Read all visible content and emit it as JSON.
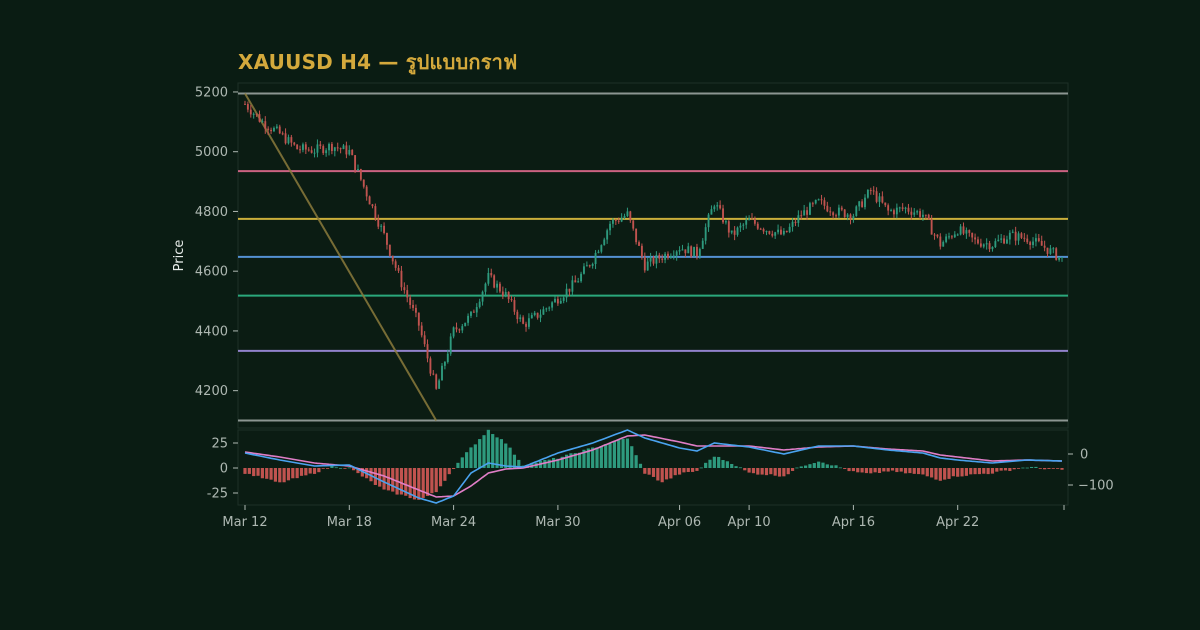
{
  "title": "XAUUSD H4 — รูปแบบกราฟ",
  "colors": {
    "background": "#0a1c13",
    "panel": "#0b1c13",
    "title": "#d4a93c",
    "up": "#2e9a7e",
    "down": "#c0534f",
    "macd": "#4aa3f0",
    "signal": "#e07ec7",
    "trend": "#8a7a3c"
  },
  "chart_data": [
    {
      "type": "candlestick",
      "ylabel": "Price",
      "ylim": [
        4075,
        5230
      ],
      "yticks": [
        4200,
        4400,
        4600,
        4800,
        5000,
        5200
      ],
      "xticks": [
        {
          "label": "Mar 12",
          "date": "2026-03-12"
        },
        {
          "label": "Mar 18",
          "date": "2026-03-18"
        },
        {
          "label": "Mar 24",
          "date": "2026-03-24"
        },
        {
          "label": "Mar 30",
          "date": "2026-03-30"
        },
        {
          "label": "Apr 06",
          "date": "2026-04-06"
        },
        {
          "label": "Apr 10",
          "date": "2026-04-10"
        },
        {
          "label": "Apr 16",
          "date": "2026-04-16"
        },
        {
          "label": "Apr 22",
          "date": "2026-04-22"
        }
      ],
      "xrange": [
        "2026-03-12",
        "2026-04-28"
      ],
      "close_path": [
        [
          "2026-03-12",
          5160
        ],
        [
          "2026-03-13",
          5100
        ],
        [
          "2026-03-14",
          5060
        ],
        [
          "2026-03-15",
          5010
        ],
        [
          "2026-03-16",
          5005
        ],
        [
          "2026-03-17",
          5020
        ],
        [
          "2026-03-18",
          5000
        ],
        [
          "2026-03-19",
          4860
        ],
        [
          "2026-03-20",
          4720
        ],
        [
          "2026-03-21",
          4560
        ],
        [
          "2026-03-22",
          4420
        ],
        [
          "2026-03-23",
          4200
        ],
        [
          "2026-03-24",
          4400
        ],
        [
          "2026-03-25",
          4450
        ],
        [
          "2026-03-26",
          4580
        ],
        [
          "2026-03-27",
          4520
        ],
        [
          "2026-03-28",
          4420
        ],
        [
          "2026-03-29",
          4460
        ],
        [
          "2026-03-30",
          4510
        ],
        [
          "2026-03-31",
          4560
        ],
        [
          "2026-04-01",
          4640
        ],
        [
          "2026-04-02",
          4760
        ],
        [
          "2026-04-03",
          4790
        ],
        [
          "2026-04-04",
          4620
        ],
        [
          "2026-04-05",
          4650
        ],
        [
          "2026-04-06",
          4680
        ],
        [
          "2026-04-07",
          4660
        ],
        [
          "2026-04-08",
          4830
        ],
        [
          "2026-04-09",
          4720
        ],
        [
          "2026-04-10",
          4770
        ],
        [
          "2026-04-11",
          4740
        ],
        [
          "2026-04-12",
          4720
        ],
        [
          "2026-04-13",
          4790
        ],
        [
          "2026-04-14",
          4830
        ],
        [
          "2026-04-15",
          4800
        ],
        [
          "2026-04-16",
          4790
        ],
        [
          "2026-04-17",
          4870
        ],
        [
          "2026-04-18",
          4800
        ],
        [
          "2026-04-19",
          4810
        ],
        [
          "2026-04-20",
          4790
        ],
        [
          "2026-04-21",
          4690
        ],
        [
          "2026-04-22",
          4740
        ],
        [
          "2026-04-23",
          4700
        ],
        [
          "2026-04-24",
          4690
        ],
        [
          "2026-04-25",
          4720
        ],
        [
          "2026-04-26",
          4710
        ],
        [
          "2026-04-27",
          4680
        ],
        [
          "2026-04-28",
          4640
        ]
      ],
      "levels": [
        {
          "value": 5195,
          "color": "#9aa4a0"
        },
        {
          "value": 4935,
          "color": "#e06a8e"
        },
        {
          "value": 4775,
          "color": "#e0c040"
        },
        {
          "value": 4648,
          "color": "#5c9ee8"
        },
        {
          "value": 4518,
          "color": "#2fb888"
        },
        {
          "value": 4333,
          "color": "#a08ee0"
        },
        {
          "value": 4100,
          "color": "#9aa4a0"
        }
      ],
      "trendline": [
        [
          "2026-03-12",
          5195
        ],
        [
          "2026-03-23",
          4100
        ]
      ]
    },
    {
      "type": "macd",
      "ylim": [
        -37,
        38
      ],
      "yticks_left": [
        25,
        0,
        -25
      ],
      "yticks_right": [
        0,
        -100
      ],
      "hist_path": [
        [
          "2026-03-12",
          -5
        ],
        [
          "2026-03-14",
          -15
        ],
        [
          "2026-03-16",
          -5
        ],
        [
          "2026-03-17",
          2
        ],
        [
          "2026-03-18",
          0
        ],
        [
          "2026-03-20",
          -22
        ],
        [
          "2026-03-22",
          -32
        ],
        [
          "2026-03-23",
          -24
        ],
        [
          "2026-03-24",
          0
        ],
        [
          "2026-03-25",
          20
        ],
        [
          "2026-03-26",
          38
        ],
        [
          "2026-03-27",
          25
        ],
        [
          "2026-03-28",
          3
        ],
        [
          "2026-03-30",
          10
        ],
        [
          "2026-04-02",
          25
        ],
        [
          "2026-04-03",
          30
        ],
        [
          "2026-04-04",
          -5
        ],
        [
          "2026-04-05",
          -14
        ],
        [
          "2026-04-06",
          -6
        ],
        [
          "2026-04-07",
          -3
        ],
        [
          "2026-04-08",
          12
        ],
        [
          "2026-04-09",
          5
        ],
        [
          "2026-04-10",
          -5
        ],
        [
          "2026-04-12",
          -8
        ],
        [
          "2026-04-13",
          2
        ],
        [
          "2026-04-14",
          7
        ],
        [
          "2026-04-15",
          2
        ],
        [
          "2026-04-16",
          -4
        ],
        [
          "2026-04-17",
          -6
        ],
        [
          "2026-04-18",
          -3
        ],
        [
          "2026-04-20",
          -7
        ],
        [
          "2026-04-21",
          -12
        ],
        [
          "2026-04-22",
          -8
        ],
        [
          "2026-04-24",
          -5
        ],
        [
          "2026-04-25",
          -2
        ],
        [
          "2026-04-26",
          1
        ],
        [
          "2026-04-28",
          -2
        ]
      ],
      "macd_path": [
        [
          "2026-03-12",
          15
        ],
        [
          "2026-03-14",
          8
        ],
        [
          "2026-03-16",
          2
        ],
        [
          "2026-03-18",
          3
        ],
        [
          "2026-03-20",
          -14
        ],
        [
          "2026-03-22",
          -30
        ],
        [
          "2026-03-23",
          -35
        ],
        [
          "2026-03-24",
          -28
        ],
        [
          "2026-03-25",
          -5
        ],
        [
          "2026-03-26",
          5
        ],
        [
          "2026-03-27",
          2
        ],
        [
          "2026-03-28",
          1
        ],
        [
          "2026-03-30",
          15
        ],
        [
          "2026-04-01",
          25
        ],
        [
          "2026-04-03",
          38
        ],
        [
          "2026-04-04",
          30
        ],
        [
          "2026-04-06",
          20
        ],
        [
          "2026-04-07",
          17
        ],
        [
          "2026-04-08",
          25
        ],
        [
          "2026-04-10",
          21
        ],
        [
          "2026-04-12",
          14
        ],
        [
          "2026-04-14",
          22
        ],
        [
          "2026-04-16",
          22
        ],
        [
          "2026-04-18",
          18
        ],
        [
          "2026-04-20",
          15
        ],
        [
          "2026-04-21",
          10
        ],
        [
          "2026-04-22",
          8
        ],
        [
          "2026-04-24",
          5
        ],
        [
          "2026-04-26",
          8
        ],
        [
          "2026-04-28",
          7
        ]
      ],
      "signal_path": [
        [
          "2026-03-12",
          16
        ],
        [
          "2026-03-14",
          11
        ],
        [
          "2026-03-16",
          5
        ],
        [
          "2026-03-18",
          2
        ],
        [
          "2026-03-20",
          -8
        ],
        [
          "2026-03-22",
          -22
        ],
        [
          "2026-03-23",
          -29
        ],
        [
          "2026-03-24",
          -28
        ],
        [
          "2026-03-25",
          -18
        ],
        [
          "2026-03-26",
          -5
        ],
        [
          "2026-03-27",
          -1
        ],
        [
          "2026-03-28",
          0
        ],
        [
          "2026-03-30",
          8
        ],
        [
          "2026-04-01",
          18
        ],
        [
          "2026-04-03",
          32
        ],
        [
          "2026-04-04",
          33
        ],
        [
          "2026-04-06",
          26
        ],
        [
          "2026-04-07",
          22
        ],
        [
          "2026-04-08",
          22
        ],
        [
          "2026-04-10",
          22
        ],
        [
          "2026-04-12",
          18
        ],
        [
          "2026-04-14",
          21
        ],
        [
          "2026-04-16",
          22
        ],
        [
          "2026-04-18",
          19
        ],
        [
          "2026-04-20",
          17
        ],
        [
          "2026-04-21",
          13
        ],
        [
          "2026-04-22",
          11
        ],
        [
          "2026-04-24",
          7
        ],
        [
          "2026-04-26",
          8
        ],
        [
          "2026-04-28",
          7
        ]
      ]
    }
  ]
}
